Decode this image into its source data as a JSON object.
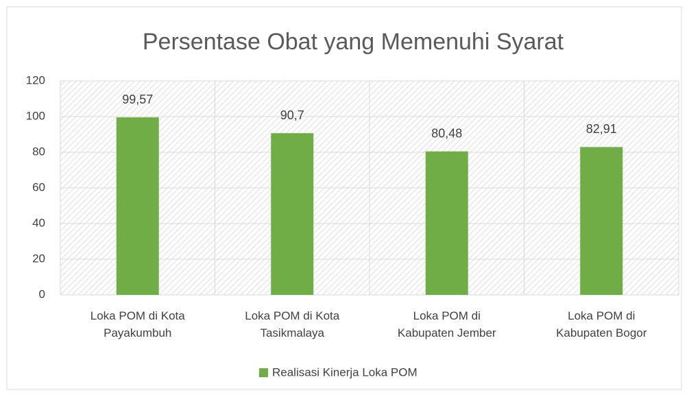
{
  "chart_data": {
    "type": "bar",
    "title": "Persentase Obat yang Memenuhi Syarat",
    "categories": [
      "Loka POM di Kota Payakumbuh",
      "Loka POM di Kota Tasikmalaya",
      "Loka POM di Kabupaten Jember",
      "Loka POM di Kabupaten Bogor"
    ],
    "series": [
      {
        "name": "Realisasi Kinerja Loka POM",
        "color": "#70ad47",
        "values": [
          99.57,
          90.7,
          80.48,
          82.91
        ],
        "value_labels": [
          "99,57",
          "90,7",
          "80,48",
          "82,91"
        ]
      }
    ],
    "ylim": [
      0,
      120
    ],
    "yticks": [
      0,
      20,
      40,
      60,
      80,
      100,
      120
    ],
    "grid": true,
    "legend": "bottom"
  }
}
